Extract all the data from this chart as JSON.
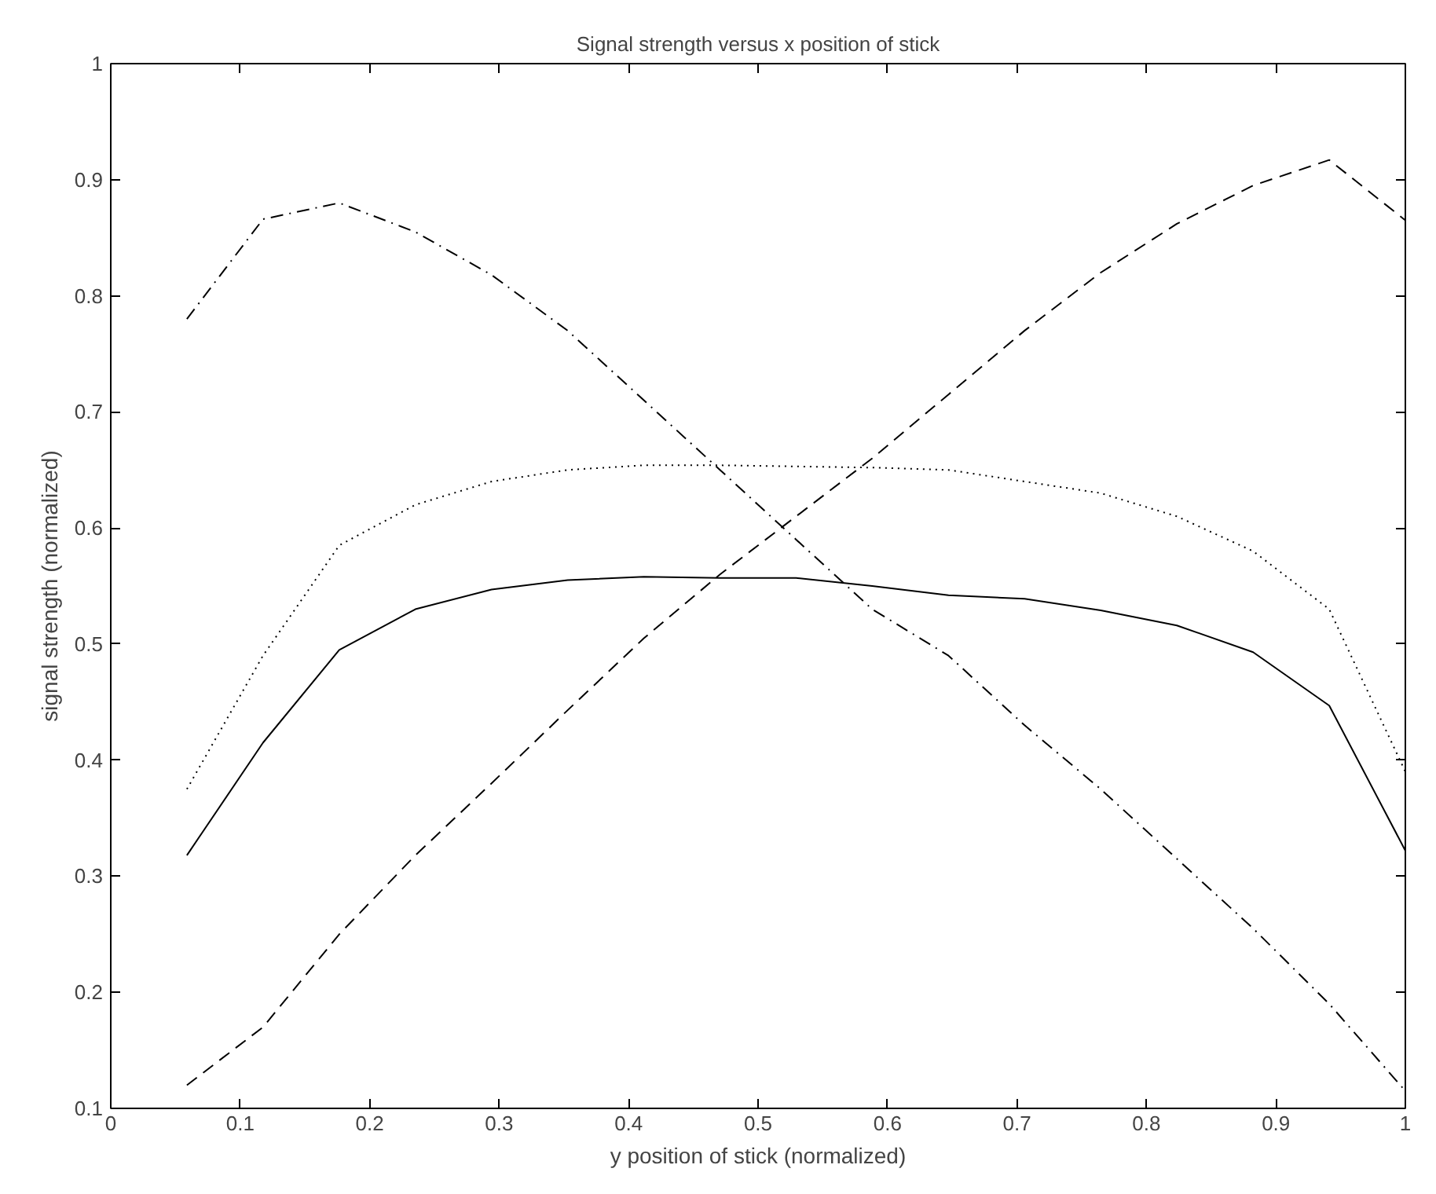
{
  "chart_data": {
    "type": "line",
    "title": "Signal strength versus x position of stick",
    "xlabel": "y position of stick (normalized)",
    "ylabel": "signal strength (normalized)",
    "x": [
      0.0588,
      0.1176,
      0.1765,
      0.2353,
      0.2941,
      0.3529,
      0.4118,
      0.4706,
      0.5294,
      0.5882,
      0.6471,
      0.7059,
      0.7647,
      0.8235,
      0.8824,
      0.9412,
      1.0
    ],
    "series": [
      {
        "color": "#000000",
        "line_style": "solid",
        "values": [
          0.318,
          0.415,
          0.495,
          0.53,
          0.547,
          0.555,
          0.558,
          0.557,
          0.557,
          0.55,
          0.542,
          0.539,
          0.529,
          0.516,
          0.493,
          0.447,
          0.322
        ]
      },
      {
        "color": "#000000",
        "line_style": "dotted",
        "values": [
          0.375,
          0.49,
          0.585,
          0.62,
          0.64,
          0.65,
          0.654,
          0.654,
          0.653,
          0.652,
          0.65,
          0.64,
          0.63,
          0.61,
          0.58,
          0.53,
          0.39
        ]
      },
      {
        "color": "#000000",
        "line_style": "dashed",
        "values": [
          0.12,
          0.17,
          0.25,
          0.318,
          0.38,
          0.443,
          0.505,
          0.56,
          0.61,
          0.66,
          0.715,
          0.77,
          0.82,
          0.862,
          0.895,
          0.917,
          0.865
        ]
      },
      {
        "color": "#000000",
        "line_style": "dashdot",
        "values": [
          0.78,
          0.866,
          0.88,
          0.855,
          0.818,
          0.77,
          0.71,
          0.65,
          0.59,
          0.53,
          0.49,
          0.43,
          0.375,
          0.315,
          0.255,
          0.19,
          0.115
        ]
      }
    ],
    "xlim": [
      0,
      1
    ],
    "ylim": [
      0.1,
      1
    ],
    "xticks": [
      0,
      0.1,
      0.2,
      0.3,
      0.4,
      0.5,
      0.6,
      0.7,
      0.8,
      0.9,
      1
    ],
    "yticks": [
      0.1,
      0.2,
      0.3,
      0.4,
      0.5,
      0.6,
      0.7,
      0.8,
      0.9,
      1
    ],
    "grid": false,
    "marker": "none"
  }
}
